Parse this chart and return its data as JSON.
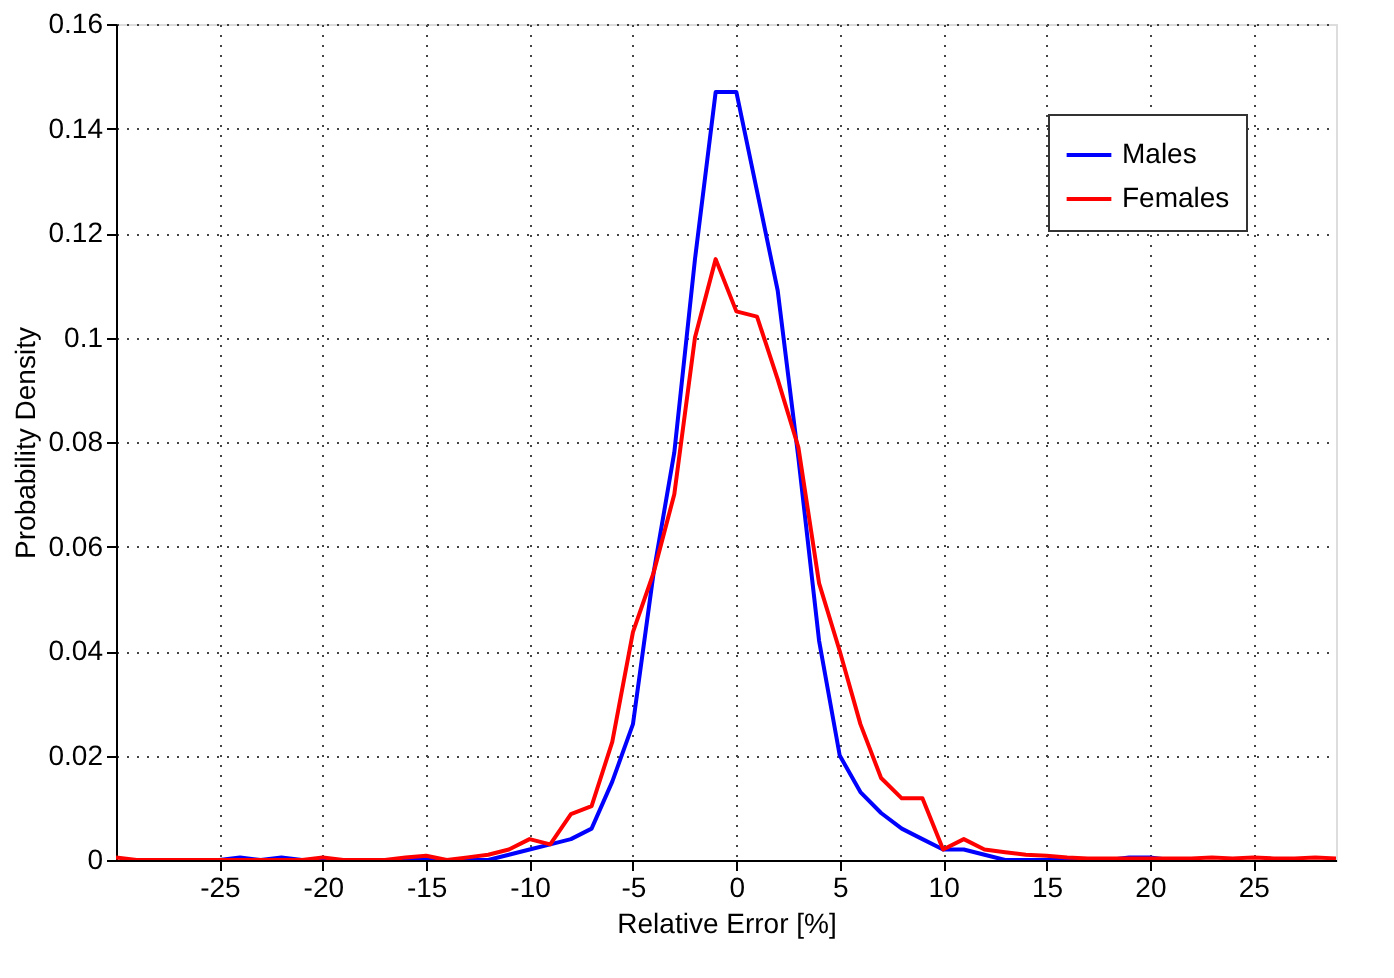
{
  "chart_data": {
    "type": "line",
    "xlabel": "Relative Error [%]",
    "ylabel": "Probability Density",
    "x": [
      -30,
      -29,
      -28,
      -27,
      -26,
      -25,
      -24,
      -23,
      -22,
      -21,
      -20,
      -19,
      -18,
      -17,
      -16,
      -15,
      -14,
      -13,
      -12,
      -11,
      -10,
      -9,
      -8,
      -7,
      -6,
      -5,
      -4,
      -3,
      -2,
      -1,
      0,
      1,
      2,
      3,
      4,
      5,
      6,
      7,
      8,
      9,
      10,
      11,
      12,
      13,
      14,
      15,
      16,
      17,
      18,
      19,
      20,
      21,
      22,
      23,
      24,
      25,
      26,
      27,
      28,
      29
    ],
    "series": [
      {
        "name": "Males",
        "color": "#0000ff",
        "values": [
          null,
          null,
          null,
          null,
          0,
          0,
          0.0005,
          0,
          0.0005,
          0,
          0,
          0,
          0,
          0,
          0,
          0,
          0,
          0,
          0,
          0.001,
          0.002,
          0.003,
          0.004,
          0.006,
          0.015,
          0.026,
          0.055,
          0.078,
          0.115,
          0.147,
          0.147,
          0.128,
          0.109,
          0.077,
          0.042,
          0.02,
          0.013,
          0.009,
          0.006,
          0.004,
          0.002,
          0.002,
          0.001,
          0,
          0,
          0,
          0,
          0,
          0,
          0.0005,
          0.0005,
          0,
          0,
          null,
          null,
          null,
          null,
          null,
          null,
          null
        ]
      },
      {
        "name": "Females",
        "color": "#ff0000",
        "values": [
          0.0005,
          0,
          0,
          0,
          0,
          0,
          0,
          0,
          0,
          0,
          0.0005,
          0,
          0,
          0,
          0.0005,
          0.0008,
          0,
          0.0005,
          0.001,
          0.002,
          0.004,
          0.003,
          0.0088,
          0.0103,
          0.0226,
          0.0436,
          0.055,
          0.07,
          0.1,
          0.115,
          0.105,
          0.104,
          0.092,
          0.079,
          0.053,
          0.04,
          0.026,
          0.0157,
          0.0118,
          0.0118,
          0.002,
          0.004,
          0.002,
          0.0015,
          0.001,
          0.0008,
          0.0005,
          0.0003,
          0.0003,
          0.0003,
          0.0003,
          0.0003,
          0.0003,
          0.0005,
          0.0003,
          0.0005,
          0.0003,
          0.0003,
          0.0005,
          0.0003
        ]
      }
    ],
    "xlim": [
      -30,
      29
    ],
    "xticks": [
      -25,
      -20,
      -15,
      -10,
      -5,
      0,
      5,
      10,
      15,
      20,
      25
    ],
    "ylim": [
      0,
      0.16
    ],
    "yticks": [
      0,
      0.02,
      0.04,
      0.06,
      0.08,
      0.1,
      0.12,
      0.14,
      0.16
    ],
    "grid": true,
    "legend": "top right"
  }
}
